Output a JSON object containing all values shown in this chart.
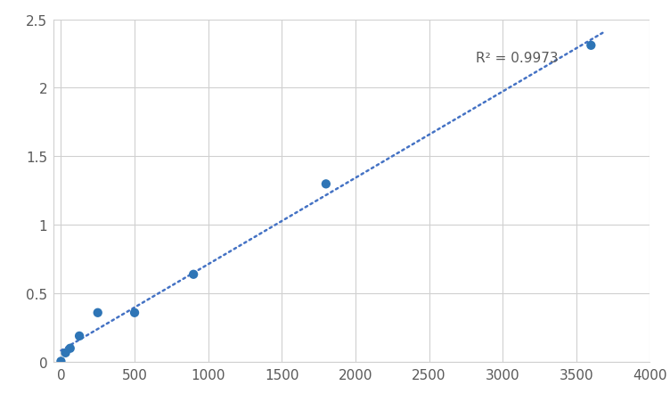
{
  "scatter_x": [
    0,
    31.2,
    62.5,
    125,
    250,
    500,
    900,
    1800,
    3600
  ],
  "scatter_y": [
    0.003,
    0.065,
    0.098,
    0.188,
    0.358,
    0.358,
    0.638,
    1.298,
    2.31
  ],
  "r_squared": "R² = 0.9973",
  "r2_x": 2820,
  "r2_y": 2.22,
  "xlim": [
    -50,
    4000
  ],
  "ylim": [
    0,
    2.5
  ],
  "xticks": [
    0,
    500,
    1000,
    1500,
    2000,
    2500,
    3000,
    3500,
    4000
  ],
  "yticks": [
    0,
    0.5,
    1.0,
    1.5,
    2.0,
    2.5
  ],
  "dot_color": "#2e75b6",
  "line_color": "#4472c4",
  "grid_color": "#d0d0d0",
  "bg_color": "#ffffff",
  "plot_bg_color": "#ffffff",
  "marker_size": 55,
  "annotation_fontsize": 11,
  "tick_fontsize": 11
}
